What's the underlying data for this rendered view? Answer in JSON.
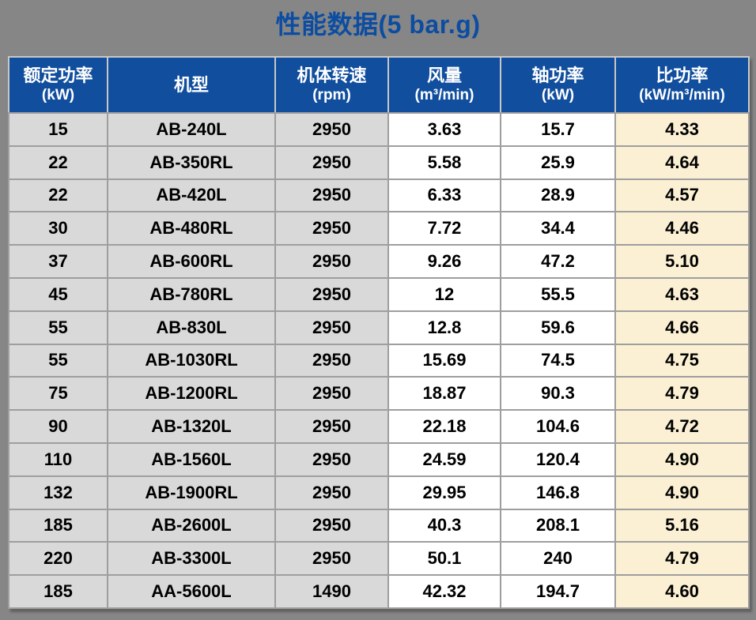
{
  "title": "性能数据(5 bar.g)",
  "pressure_label": "5 bar.g",
  "colors": {
    "page_bg": "#868686",
    "title_color": "#0C4DA2",
    "header_bg": "#114E9E",
    "cell_gray": "#D9D9D9",
    "cell_white": "#FFFFFF",
    "cell_cream": "#FBF0D3"
  },
  "table": {
    "columns": [
      {
        "key": "rated-power",
        "label": "额定功率",
        "unit": "(kW)"
      },
      {
        "key": "model",
        "label": "机型",
        "unit": ""
      },
      {
        "key": "rotation-speed",
        "label": "机体转速",
        "unit": "(rpm)"
      },
      {
        "key": "air-flow",
        "label": "风量",
        "unit": "(m³/min)"
      },
      {
        "key": "shaft-power",
        "label": "轴功率",
        "unit": "(kW)"
      },
      {
        "key": "specific-power",
        "label": "比功率",
        "unit": "(kW/m³/min)"
      }
    ],
    "rows": [
      [
        "15",
        "AB-240L",
        "2950",
        "3.63",
        "15.7",
        "4.33"
      ],
      [
        "22",
        "AB-350RL",
        "2950",
        "5.58",
        "25.9",
        "4.64"
      ],
      [
        "22",
        "AB-420L",
        "2950",
        "6.33",
        "28.9",
        "4.57"
      ],
      [
        "30",
        "AB-480RL",
        "2950",
        "7.72",
        "34.4",
        "4.46"
      ],
      [
        "37",
        "AB-600RL",
        "2950",
        "9.26",
        "47.2",
        "5.10"
      ],
      [
        "45",
        "AB-780RL",
        "2950",
        "12",
        "55.5",
        "4.63"
      ],
      [
        "55",
        "AB-830L",
        "2950",
        "12.8",
        "59.6",
        "4.66"
      ],
      [
        "55",
        "AB-1030RL",
        "2950",
        "15.69",
        "74.5",
        "4.75"
      ],
      [
        "75",
        "AB-1200RL",
        "2950",
        "18.87",
        "90.3",
        "4.79"
      ],
      [
        "90",
        "AB-1320L",
        "2950",
        "22.18",
        "104.6",
        "4.72"
      ],
      [
        "110",
        "AB-1560L",
        "2950",
        "24.59",
        "120.4",
        "4.90"
      ],
      [
        "132",
        "AB-1900RL",
        "2950",
        "29.95",
        "146.8",
        "4.90"
      ],
      [
        "185",
        "AB-2600L",
        "2950",
        "40.3",
        "208.1",
        "5.16"
      ],
      [
        "220",
        "AB-3300L",
        "2950",
        "50.1",
        "240",
        "4.79"
      ],
      [
        "185",
        "AA-5600L",
        "1490",
        "42.32",
        "194.7",
        "4.60"
      ]
    ]
  }
}
